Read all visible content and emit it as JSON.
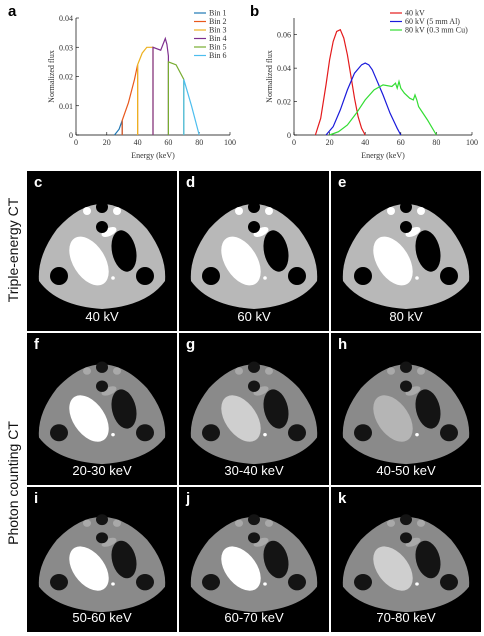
{
  "chart_data": [
    {
      "panel": "a",
      "type": "line",
      "xlabel": "Energy (keV)",
      "ylabel": "Normalized flux",
      "xlim": [
        0,
        100
      ],
      "ylim": [
        0,
        0.04
      ],
      "xticks": [
        0,
        20,
        40,
        60,
        80,
        100
      ],
      "yticks": [
        0,
        0.01,
        0.02,
        0.03,
        0.04
      ],
      "ytick_labels": [
        "0",
        "0.01",
        "0.02",
        "0.03",
        "0.04"
      ],
      "legend_position": "top-right",
      "series": [
        {
          "name": "Bin 1",
          "color": "#1f77b4",
          "x": [
            25,
            28,
            30,
            30
          ],
          "y": [
            0.0,
            0.002,
            0.005,
            0.0
          ]
        },
        {
          "name": "Bin 2",
          "color": "#e8581c",
          "x": [
            30,
            30,
            34,
            38,
            40,
            40
          ],
          "y": [
            0.0,
            0.005,
            0.011,
            0.019,
            0.024,
            0.0
          ]
        },
        {
          "name": "Bin 3",
          "color": "#edb120",
          "x": [
            40,
            40,
            43,
            46,
            50,
            50
          ],
          "y": [
            0.0,
            0.024,
            0.028,
            0.03,
            0.03,
            0.0
          ]
        },
        {
          "name": "Bin 4",
          "color": "#7e2f8e",
          "x": [
            50,
            50,
            55,
            58,
            59,
            60,
            60
          ],
          "y": [
            0.0,
            0.03,
            0.029,
            0.033,
            0.031,
            0.027,
            0.0
          ]
        },
        {
          "name": "Bin 5",
          "color": "#77ac30",
          "x": [
            60,
            60,
            65,
            70,
            70
          ],
          "y": [
            0.0,
            0.025,
            0.024,
            0.019,
            0.0
          ]
        },
        {
          "name": "Bin 6",
          "color": "#4dbeee",
          "x": [
            70,
            70,
            75,
            80
          ],
          "y": [
            0.0,
            0.019,
            0.01,
            0.0
          ]
        }
      ]
    },
    {
      "panel": "b",
      "type": "line",
      "xlabel": "Energy (keV)",
      "ylabel": "Normalized flux",
      "xlim": [
        0,
        100
      ],
      "ylim": [
        0,
        0.07
      ],
      "xticks": [
        0,
        20,
        40,
        60,
        80,
        100
      ],
      "yticks": [
        0,
        0.02,
        0.04,
        0.06
      ],
      "ytick_labels": [
        "0",
        "0.02",
        "0.04",
        "0.06"
      ],
      "legend_position": "top-right",
      "series": [
        {
          "name": "40 kV",
          "color": "#e41a1c",
          "x": [
            12,
            15,
            18,
            20,
            22,
            24,
            26,
            28,
            30,
            32,
            34,
            36,
            38,
            40
          ],
          "y": [
            0.0,
            0.01,
            0.03,
            0.045,
            0.056,
            0.062,
            0.063,
            0.058,
            0.048,
            0.035,
            0.022,
            0.011,
            0.004,
            0.0
          ]
        },
        {
          "name": "60 kV (5 mm Al)",
          "color": "#1a1adb",
          "x": [
            18,
            22,
            26,
            30,
            34,
            38,
            40,
            42,
            44,
            46,
            50,
            54,
            58,
            60
          ],
          "y": [
            0.0,
            0.005,
            0.015,
            0.027,
            0.037,
            0.042,
            0.043,
            0.042,
            0.039,
            0.034,
            0.024,
            0.013,
            0.004,
            0.0
          ]
        },
        {
          "name": "80 kV (0.3 mm Cu)",
          "color": "#33dd33",
          "x": [
            20,
            25,
            30,
            35,
            40,
            45,
            50,
            55,
            57,
            58,
            59,
            60,
            62,
            65,
            67,
            68,
            69,
            70,
            75,
            80
          ],
          "y": [
            0.0,
            0.002,
            0.006,
            0.013,
            0.021,
            0.027,
            0.03,
            0.029,
            0.031,
            0.028,
            0.032,
            0.028,
            0.025,
            0.022,
            0.021,
            0.024,
            0.021,
            0.017,
            0.009,
            0.0
          ]
        }
      ]
    }
  ],
  "row_labels": {
    "triple": "Triple-energy CT",
    "photon": "Photon counting CT"
  },
  "ct_panels": [
    {
      "letter": "c",
      "caption": "40 kV",
      "brightness": 1.0
    },
    {
      "letter": "d",
      "caption": "60 kV",
      "brightness": 1.0
    },
    {
      "letter": "e",
      "caption": "80 kV",
      "brightness": 1.0
    },
    {
      "letter": "f",
      "caption": "20-30 keV",
      "brightness": 0.97
    },
    {
      "letter": "g",
      "caption": "30-40 keV",
      "brightness": 0.85
    },
    {
      "letter": "h",
      "caption": "40-50 keV",
      "brightness": 0.8
    },
    {
      "letter": "i",
      "caption": "50-60 keV",
      "brightness": 0.98
    },
    {
      "letter": "j",
      "caption": "60-70 keV",
      "brightness": 0.98
    },
    {
      "letter": "k",
      "caption": "70-80 keV",
      "brightness": 0.92
    }
  ]
}
